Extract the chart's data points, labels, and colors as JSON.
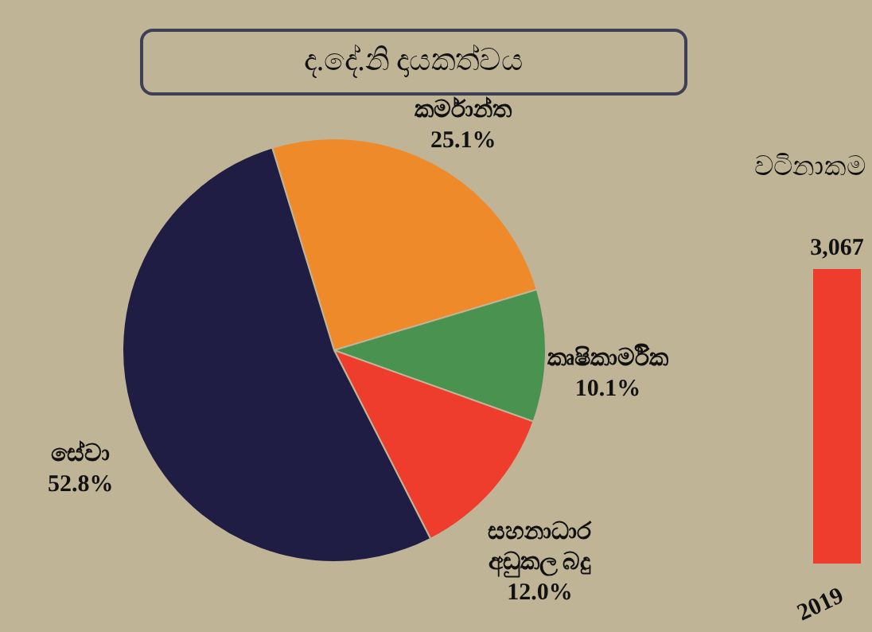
{
  "chart_data": [
    {
      "type": "pie",
      "title": "ද.දේ.නි දායකත්වය",
      "categories": [
        "කර්මාන්ත",
        "කෘෂිකාර්මික",
        "සහනාධාර අඩුකල බදු",
        "සේවා"
      ],
      "values": [
        25.1,
        10.1,
        12.0,
        52.8
      ],
      "colors": [
        "#ee8a2a",
        "#4a9250",
        "#ee3d2c",
        "#1f1d44"
      ],
      "value_labels": [
        "25.1%",
        "10.1%",
        "12.0%",
        "52.8%"
      ]
    },
    {
      "type": "bar",
      "ylabel": "වටිනාකම",
      "categories": [
        "2019"
      ],
      "values": [
        3067
      ],
      "value_labels": [
        "3,067"
      ],
      "colors": [
        "#ee3d2c"
      ],
      "ylim": [
        0,
        3067
      ],
      "tick_labels": "x"
    }
  ]
}
